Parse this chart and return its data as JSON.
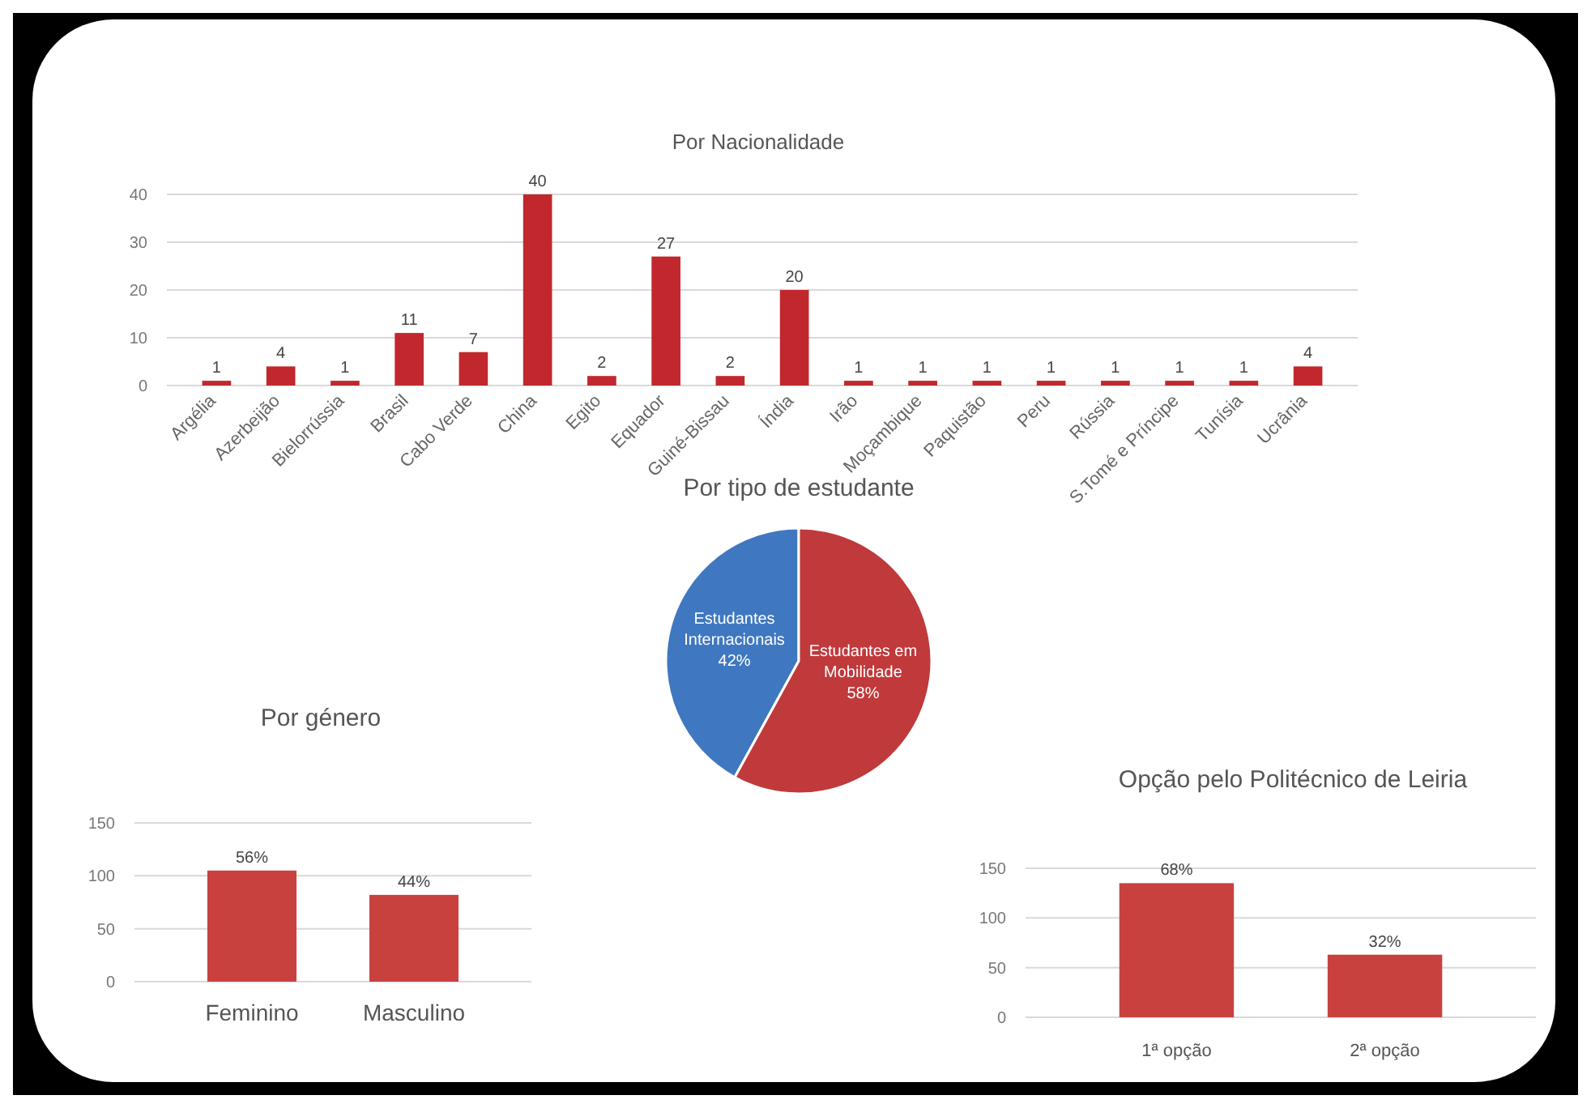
{
  "chart_data": [
    {
      "type": "bar",
      "title": "Por Nacionalidade",
      "categories": [
        "Argélia",
        "Azerbeijão",
        "Bielorrússia",
        "Brasil",
        "Cabo Verde",
        "China",
        "Egito",
        "Equador",
        "Guiné-Bissau",
        "Índia",
        "Irão",
        "Moçambique",
        "Paquistão",
        "Peru",
        "Rússia",
        "S.Tomé e Príncipe",
        "Tunísia",
        "Ucrânia"
      ],
      "values": [
        1,
        4,
        1,
        11,
        7,
        40,
        2,
        27,
        2,
        20,
        1,
        1,
        1,
        1,
        1,
        1,
        1,
        4
      ],
      "color": "#c0282d",
      "ylim": [
        0,
        40
      ],
      "yticks": [
        0,
        10,
        20,
        30,
        40
      ],
      "grid": "y",
      "data_labels": true
    },
    {
      "type": "pie",
      "title": "Por tipo de estudante",
      "categories": [
        "Estudantes Internacionais",
        "Estudantes em Mobilidade"
      ],
      "values": [
        42,
        58
      ],
      "colors": [
        "#3f78c0",
        "#c0393b"
      ],
      "value_labels": [
        "42%",
        "58%"
      ]
    },
    {
      "type": "bar",
      "title": "Por género",
      "categories": [
        "Feminino",
        "Masculino"
      ],
      "values": [
        105,
        82
      ],
      "color": "#c9413f",
      "ylim": [
        0,
        150
      ],
      "yticks": [
        0,
        50,
        100,
        150
      ],
      "grid": "y",
      "annotations": [
        {
          "text": "56%",
          "x": "Feminino",
          "y": 105
        },
        {
          "text": "44%",
          "x": "Masculino",
          "y": 82
        }
      ]
    },
    {
      "type": "bar",
      "title": "Opção pelo Politécnico de Leiria",
      "categories": [
        "1ª opção",
        "2ª opção"
      ],
      "values": [
        135,
        63
      ],
      "color": "#c9413f",
      "ylim": [
        0,
        150
      ],
      "yticks": [
        0,
        50,
        100,
        150
      ],
      "grid": "y",
      "annotations": [
        {
          "text": "68%",
          "x": "1ª opção",
          "y": 135
        },
        {
          "text": "32%",
          "x": "2ª opção",
          "y": 63
        }
      ]
    }
  ]
}
